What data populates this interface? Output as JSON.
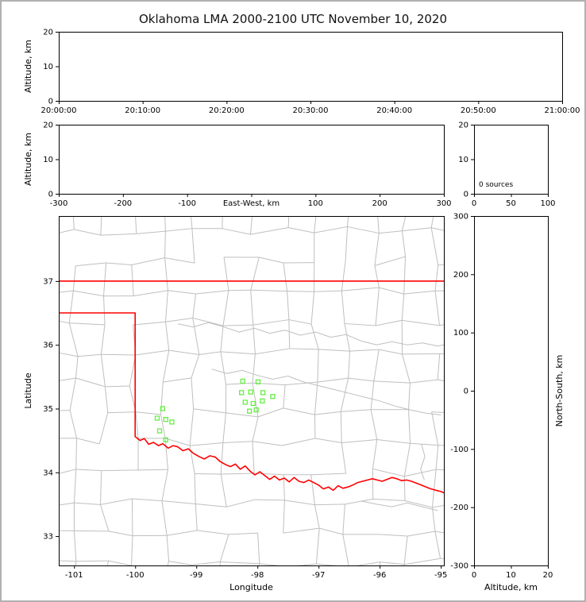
{
  "title": "Oklahoma LMA 2000-2100 UTC November 10, 2020",
  "colors": {
    "state_boundary": "#ff0000",
    "county_lines": "#bfbfbf",
    "station_marker": "#66ee44",
    "axis": "#000000",
    "frame_border": "#b0b0b0",
    "background": "#ffffff"
  },
  "chart_data": [
    {
      "id": "time_height",
      "type": "scatter",
      "ylabel": "Altitude, km",
      "ylim": [
        0,
        20
      ],
      "yticks": [
        "0",
        "10",
        "20"
      ],
      "xticks": [
        "20:00:00",
        "20:10:00",
        "20:20:00",
        "20:30:00",
        "20:40:00",
        "20:50:00",
        "21:00:00"
      ],
      "points": []
    },
    {
      "id": "ew_height",
      "type": "scatter",
      "xlabel": "East-West, km",
      "xlabel_replaces_zero": true,
      "xlim": [
        -300,
        300
      ],
      "xticks": [
        "-300",
        "-200",
        "-100",
        "0",
        "100",
        "200",
        "300"
      ],
      "ylabel": "Altitude, km",
      "ylim": [
        0,
        20
      ],
      "yticks": [
        "0",
        "10",
        "20"
      ],
      "points": []
    },
    {
      "id": "src_histogram",
      "type": "bar",
      "xlim": [
        0,
        100
      ],
      "xticks": [
        "0",
        "50",
        "100"
      ],
      "ylim": [
        0,
        20
      ],
      "yticks": [
        "0",
        "10",
        "20"
      ],
      "annotation": "0 sources",
      "values": []
    },
    {
      "id": "plan_view",
      "type": "scatter",
      "xlabel": "Longitude",
      "ylabel": "Latitude",
      "xlim": [
        -101.25,
        -94.95
      ],
      "xticks": [
        "-101",
        "-100",
        "-99",
        "-98",
        "-97",
        "-96",
        "-95"
      ],
      "ylim": [
        32.54,
        38.02
      ],
      "yticks": [
        "33",
        "34",
        "35",
        "36",
        "37"
      ],
      "stations": [
        [
          -98.24,
          35.43
        ],
        [
          -97.99,
          35.42
        ],
        [
          -98.26,
          35.25
        ],
        [
          -98.11,
          35.26
        ],
        [
          -97.91,
          35.25
        ],
        [
          -98.2,
          35.1
        ],
        [
          -98.07,
          35.08
        ],
        [
          -97.92,
          35.12
        ],
        [
          -97.75,
          35.19
        ],
        [
          -98.13,
          34.96
        ],
        [
          -98.02,
          34.98
        ],
        [
          -99.55,
          35.0
        ],
        [
          -99.64,
          34.85
        ],
        [
          -99.5,
          34.83
        ],
        [
          -99.4,
          34.79
        ],
        [
          -99.6,
          34.65
        ],
        [
          -99.5,
          34.51
        ]
      ],
      "state_boundary": [
        [
          [
            -101.25,
            37.0
          ],
          [
            -94.95,
            37.0
          ]
        ],
        [
          [
            -101.25,
            36.5
          ],
          [
            -100.0,
            36.5
          ],
          [
            -100.0,
            34.56
          ],
          [
            -99.92,
            34.5
          ],
          [
            -99.85,
            34.53
          ],
          [
            -99.78,
            34.44
          ],
          [
            -99.7,
            34.47
          ],
          [
            -99.62,
            34.42
          ],
          [
            -99.55,
            34.45
          ],
          [
            -99.46,
            34.38
          ],
          [
            -99.38,
            34.42
          ],
          [
            -99.3,
            34.4
          ],
          [
            -99.22,
            34.34
          ],
          [
            -99.13,
            34.37
          ],
          [
            -99.05,
            34.3
          ],
          [
            -98.96,
            34.25
          ],
          [
            -98.87,
            34.21
          ],
          [
            -98.78,
            34.26
          ],
          [
            -98.69,
            34.24
          ],
          [
            -98.61,
            34.17
          ],
          [
            -98.52,
            34.12
          ],
          [
            -98.44,
            34.09
          ],
          [
            -98.36,
            34.13
          ],
          [
            -98.28,
            34.05
          ],
          [
            -98.2,
            34.1
          ],
          [
            -98.12,
            34.02
          ],
          [
            -98.04,
            33.96
          ],
          [
            -97.96,
            34.01
          ],
          [
            -97.88,
            33.95
          ],
          [
            -97.8,
            33.89
          ],
          [
            -97.72,
            33.94
          ],
          [
            -97.64,
            33.88
          ],
          [
            -97.56,
            33.91
          ],
          [
            -97.48,
            33.85
          ],
          [
            -97.4,
            33.92
          ],
          [
            -97.32,
            33.86
          ],
          [
            -97.24,
            33.84
          ],
          [
            -97.16,
            33.88
          ],
          [
            -97.08,
            33.84
          ],
          [
            -97.0,
            33.8
          ],
          [
            -96.92,
            33.74
          ],
          [
            -96.84,
            33.77
          ],
          [
            -96.76,
            33.72
          ],
          [
            -96.68,
            33.79
          ],
          [
            -96.6,
            33.75
          ],
          [
            -96.52,
            33.77
          ],
          [
            -96.44,
            33.8
          ],
          [
            -96.36,
            33.84
          ],
          [
            -96.28,
            33.86
          ],
          [
            -96.2,
            33.88
          ],
          [
            -96.12,
            33.9
          ],
          [
            -96.04,
            33.88
          ],
          [
            -95.96,
            33.86
          ],
          [
            -95.88,
            33.89
          ],
          [
            -95.8,
            33.92
          ],
          [
            -95.72,
            33.9
          ],
          [
            -95.64,
            33.87
          ],
          [
            -95.56,
            33.88
          ],
          [
            -95.48,
            33.86
          ],
          [
            -95.4,
            33.83
          ],
          [
            -95.32,
            33.8
          ],
          [
            -95.24,
            33.77
          ],
          [
            -95.16,
            33.74
          ],
          [
            -95.08,
            33.72
          ],
          [
            -95.0,
            33.7
          ],
          [
            -94.95,
            33.68
          ]
        ]
      ],
      "rivers": [
        [
          [
            -99.3,
            36.33
          ],
          [
            -99.05,
            36.28
          ],
          [
            -98.8,
            36.35
          ],
          [
            -98.55,
            36.28
          ],
          [
            -98.3,
            36.2
          ],
          [
            -98.05,
            36.26
          ],
          [
            -97.8,
            36.18
          ],
          [
            -97.55,
            36.23
          ],
          [
            -97.3,
            36.15
          ],
          [
            -97.05,
            36.2
          ],
          [
            -96.8,
            36.12
          ],
          [
            -96.55,
            36.16
          ],
          [
            -96.3,
            36.06
          ],
          [
            -96.05,
            36.0
          ],
          [
            -95.8,
            36.05
          ],
          [
            -95.55,
            36.0
          ],
          [
            -95.3,
            36.03
          ],
          [
            -95.05,
            35.98
          ],
          [
            -94.95,
            36.0
          ]
        ],
        [
          [
            -98.75,
            35.62
          ],
          [
            -98.5,
            35.55
          ],
          [
            -98.25,
            35.6
          ],
          [
            -98.0,
            35.52
          ],
          [
            -97.75,
            35.46
          ],
          [
            -97.5,
            35.51
          ],
          [
            -97.25,
            35.42
          ],
          [
            -97.0,
            35.36
          ],
          [
            -96.75,
            35.3
          ],
          [
            -96.5,
            35.24
          ],
          [
            -96.25,
            35.18
          ],
          [
            -96.0,
            35.12
          ],
          [
            -95.75,
            35.04
          ],
          [
            -95.5,
            34.98
          ],
          [
            -95.25,
            34.93
          ],
          [
            -95.0,
            34.9
          ]
        ],
        [
          [
            -96.3,
            33.55
          ],
          [
            -96.05,
            33.5
          ],
          [
            -95.8,
            33.46
          ],
          [
            -95.55,
            33.52
          ],
          [
            -95.3,
            33.46
          ],
          [
            -95.05,
            33.4
          ]
        ],
        [
          [
            -95.32,
            34.45
          ],
          [
            -95.26,
            34.25
          ],
          [
            -95.33,
            34.05
          ],
          [
            -95.27,
            33.88
          ]
        ]
      ],
      "points": []
    },
    {
      "id": "ns_height",
      "type": "scatter",
      "xlabel": "Altitude, km",
      "xlim": [
        0,
        20
      ],
      "xticks": [
        "0",
        "10",
        "20"
      ],
      "ylabel": "North-South, km",
      "ylabel_side": "right",
      "ylim": [
        -300,
        300
      ],
      "yticks": [
        "-300",
        "-200",
        "-100",
        "0",
        "100",
        "200",
        "300"
      ],
      "points": []
    }
  ]
}
